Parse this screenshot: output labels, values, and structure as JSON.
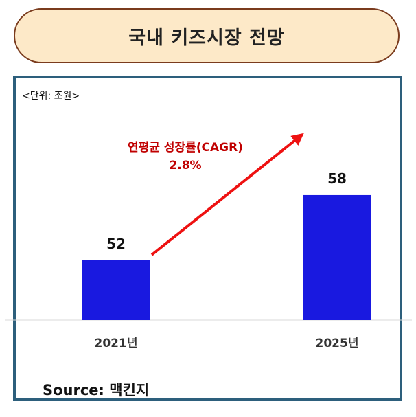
{
  "title": "국내 키즈시장 전망",
  "unit_label": "<단위: 조원>",
  "source": "Source:  맥킨지",
  "annotation": {
    "line1": "연평균 성장률(CAGR)",
    "line2": "2.8%"
  },
  "colors": {
    "bar": "#1919e0",
    "arrow": "#ee1111",
    "annotation": "#c00000",
    "frame": "#2d5f7c",
    "title_bg": "#fde9c8"
  },
  "chart_data": {
    "type": "bar",
    "categories": [
      "2021년",
      "2025년"
    ],
    "values": [
      52,
      58
    ],
    "data_labels": [
      "52",
      "58"
    ],
    "title": "국내 키즈시장 전망",
    "ylabel": "",
    "xlabel": "",
    "grid": false,
    "legend": "none"
  }
}
